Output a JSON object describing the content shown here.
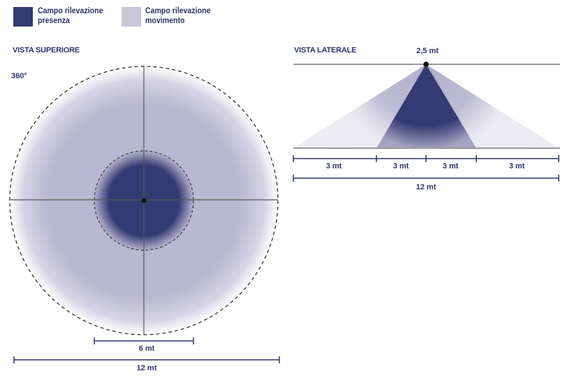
{
  "colors": {
    "presence": "#343a72",
    "movement": "#c8c6db",
    "movement_light": "#e9e8f0",
    "text": "#2e3366",
    "line": "#555555"
  },
  "legend": {
    "presence": {
      "line1": "Campo rilevazione",
      "line2": "presenza"
    },
    "movement": {
      "line1": "Campo rilevazione",
      "line2": "movimento"
    }
  },
  "top_view": {
    "title": "VISTA SUPERIORE",
    "angle_label": "360°",
    "inner_dimension_label": "6 mt",
    "outer_dimension_label": "12 mt"
  },
  "side_view": {
    "title": "VISTA LATERALE",
    "height_label": "2,5 mt",
    "segment_labels": [
      "3 mt",
      "3 mt",
      "3 mt",
      "3 mt"
    ],
    "total_label": "12 mt"
  }
}
